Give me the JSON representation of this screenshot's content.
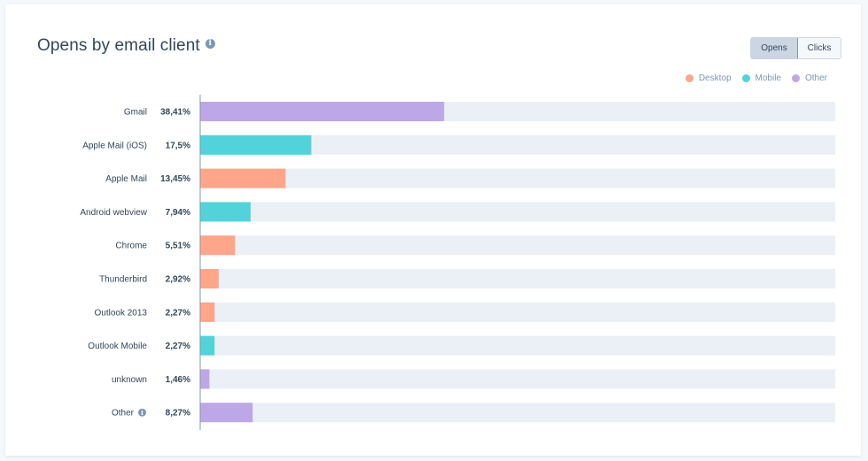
{
  "header": {
    "title": "Opens by email client",
    "info_icon": "info-icon"
  },
  "toggle": {
    "opens_label": "Opens",
    "clicks_label": "Clicks",
    "selected": "Opens"
  },
  "colors": {
    "Desktop": "#ffa589",
    "Mobile": "#51d3d9",
    "Other": "#bea7e7",
    "track": "#eaf0f6",
    "axis": "#7c98b6"
  },
  "chart_data": {
    "type": "bar",
    "orientation": "horizontal",
    "title": "Opens by email client",
    "legend": [
      "Desktop",
      "Mobile",
      "Other"
    ],
    "legend_position": "top-right",
    "xlim": [
      0,
      100
    ],
    "categories": [
      "Gmail",
      "Apple Mail (iOS)",
      "Apple Mail",
      "Android webview",
      "Chrome",
      "Thunderbird",
      "Outlook 2013",
      "Outlook Mobile",
      "unknown",
      "Other"
    ],
    "values": [
      38.41,
      17.5,
      13.45,
      7.94,
      5.51,
      2.92,
      2.27,
      2.27,
      1.46,
      8.27
    ],
    "value_labels": [
      "38,41%",
      "17,5%",
      "13,45%",
      "7,94%",
      "5,51%",
      "2,92%",
      "2,27%",
      "2,27%",
      "1,46%",
      "8,27%"
    ],
    "groups": [
      "Other",
      "Mobile",
      "Desktop",
      "Mobile",
      "Desktop",
      "Desktop",
      "Desktop",
      "Mobile",
      "Other",
      "Other"
    ]
  }
}
